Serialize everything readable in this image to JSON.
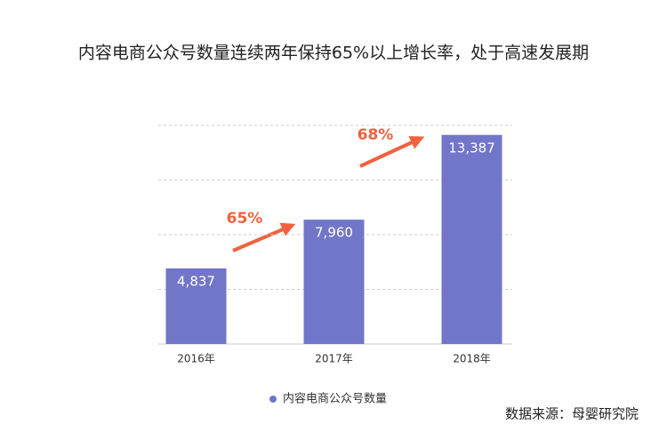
{
  "chart_data": {
    "type": "bar",
    "title": "内容电商公众号数量连续两年保持65%以上增长率，处于高速发展期",
    "categories": [
      "2016年",
      "2017年",
      "2018年"
    ],
    "series": [
      {
        "name": "内容电商公众号数量",
        "color": "#7276c9",
        "values": [
          4837,
          7960,
          13387
        ],
        "value_labels": [
          "4,837",
          "7,960",
          "13,387"
        ]
      }
    ],
    "ylim": [
      0,
      14000
    ],
    "yticks": [
      0,
      3500,
      7000,
      10500,
      14000
    ],
    "grid": true,
    "annotations": [
      "65%",
      "68%"
    ],
    "source": "数据来源：母婴研究院"
  }
}
